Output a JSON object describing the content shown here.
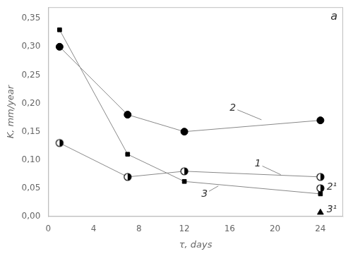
{
  "chart_data": {
    "type": "line",
    "title": "a",
    "x_label": "τ, days",
    "y_label": "K, mm/year",
    "xlim": [
      0,
      26
    ],
    "ylim": [
      0,
      0.37
    ],
    "xticks": [
      0,
      4,
      8,
      12,
      16,
      20,
      24
    ],
    "yticks": [
      {
        "value": 0.0,
        "label": "0,00"
      },
      {
        "value": 0.05,
        "label": "0,05"
      },
      {
        "value": 0.1,
        "label": "0,10"
      },
      {
        "value": 0.15,
        "label": "0,15"
      },
      {
        "value": 0.2,
        "label": "0,20"
      },
      {
        "value": 0.25,
        "label": "0,25"
      },
      {
        "value": 0.3,
        "label": "0,30"
      },
      {
        "value": 0.35,
        "label": "0,35"
      }
    ],
    "grid": false,
    "color": "#888888",
    "series": [
      {
        "type": "line",
        "marker": "square",
        "color": "#000000",
        "x": [
          1,
          7,
          12,
          24
        ],
        "values": [
          0.33,
          0.11,
          0.062,
          0.04
        ]
      },
      {
        "type": "line",
        "marker": "circle",
        "color": "#000000",
        "x": [
          1,
          7,
          12,
          24
        ],
        "values": [
          0.3,
          0.18,
          0.15,
          0.17
        ]
      },
      {
        "type": "line",
        "marker": "half_filled_circle",
        "color": "#000000",
        "x": [
          1,
          7,
          12,
          24
        ],
        "values": [
          0.13,
          0.07,
          0.08,
          0.07
        ]
      },
      {
        "type": "scatter",
        "marker": "half_filled_circle",
        "color": "#000000",
        "x": [
          24
        ],
        "values": [
          0.05
        ]
      },
      {
        "type": "scatter",
        "marker": "triangle",
        "color": "#000000",
        "x": [
          24
        ],
        "values": [
          0.007
        ]
      }
    ],
    "annotations": [
      {
        "text": "2",
        "x": 16.0,
        "y": 0.192,
        "arrow_to": [
          18.8,
          0.171
        ]
      },
      {
        "text": "1",
        "x": 18.2,
        "y": 0.093,
        "arrow_to": [
          20.5,
          0.074
        ]
      },
      {
        "text": "3",
        "x": 13.5,
        "y": 0.04,
        "arrow_to": [
          15.0,
          0.054
        ]
      },
      {
        "text": "2¹",
        "x": 24.55,
        "y": 0.052
      },
      {
        "text": "3¹",
        "x": 24.55,
        "y": 0.012
      }
    ]
  }
}
